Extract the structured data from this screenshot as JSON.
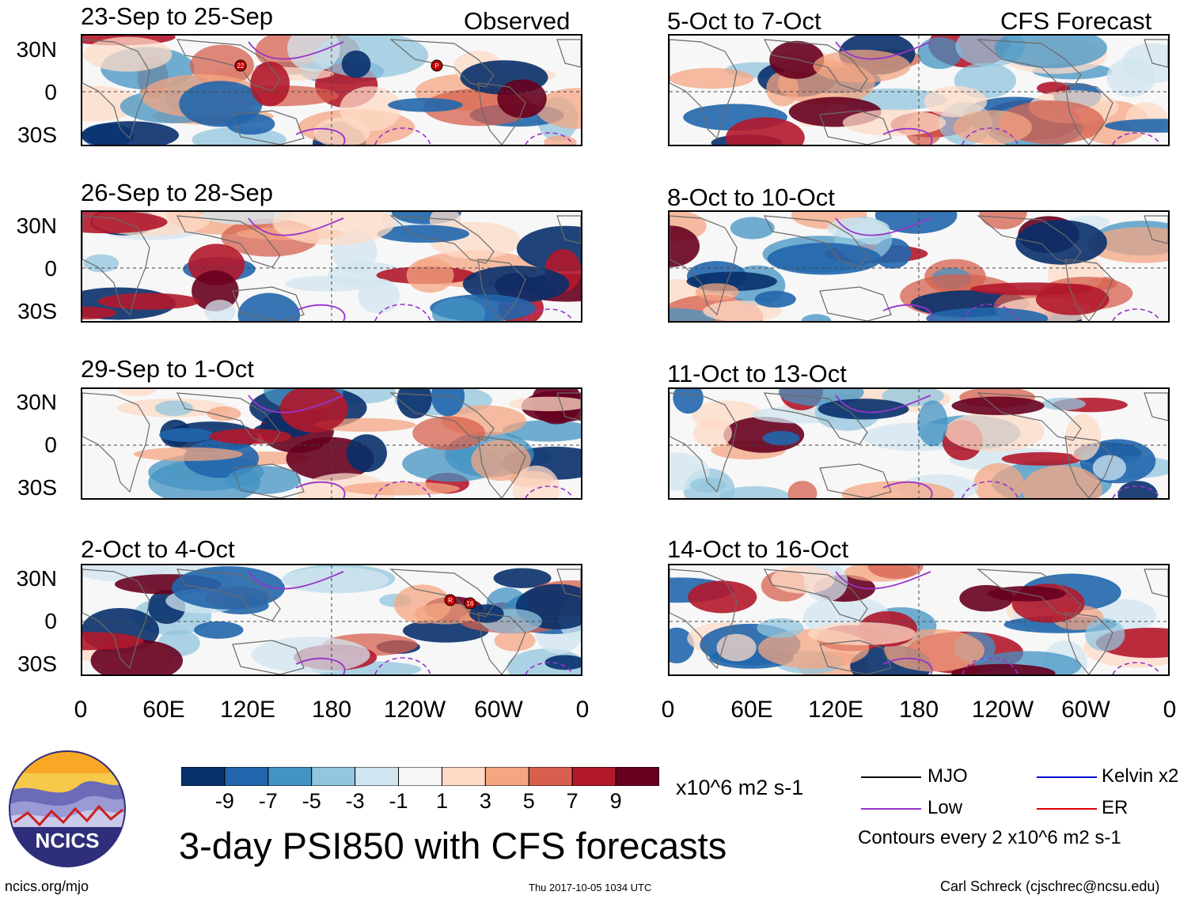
{
  "left_header": "Observed",
  "right_header": "CFS Forecast",
  "panels_left": [
    "23-Sep to 25-Sep",
    "26-Sep to 28-Sep",
    "29-Sep to 1-Oct",
    "2-Oct to 4-Oct"
  ],
  "panels_right": [
    "5-Oct to 7-Oct",
    "8-Oct to 10-Oct",
    "11-Oct to 13-Oct",
    "14-Oct to 16-Oct"
  ],
  "lat_labels": [
    "30N",
    "0",
    "30S"
  ],
  "lon_labels": [
    "0",
    "60E",
    "120E",
    "180",
    "120W",
    "60W",
    "0"
  ],
  "storm_markers": {
    "panel1": [
      "22",
      "P"
    ],
    "panel4": [
      "R",
      "16"
    ]
  },
  "colorbar": {
    "colors": [
      "#08306b",
      "#2166ac",
      "#4393c3",
      "#92c5de",
      "#d1e5f0",
      "#f7f7f7",
      "#fddbc7",
      "#f4a582",
      "#d6604d",
      "#b2182b",
      "#67001f"
    ],
    "ticks": [
      "-9",
      "-7",
      "-5",
      "-3",
      "-1",
      "1",
      "3",
      "5",
      "7",
      "9"
    ],
    "units": "x10^6 m2 s-1"
  },
  "legend": {
    "items": [
      {
        "label": "MJO",
        "color": "#000000"
      },
      {
        "label": "Low",
        "color": "#9933cc"
      },
      {
        "label": "Kelvin x2",
        "color": "#0000cc"
      },
      {
        "label": "ER",
        "color": "#dd0000"
      }
    ],
    "contours_note": "Contours every 2 x10^6 m2 s-1"
  },
  "logo_text": "NCICS",
  "main_title": "3-day PSI850 with CFS forecasts",
  "footer": {
    "url": "ncics.org/mjo",
    "timestamp": "Thu 2017-10-05 1034 UTC",
    "author": "Carl Schreck (cjschrec@ncsu.edu)"
  }
}
